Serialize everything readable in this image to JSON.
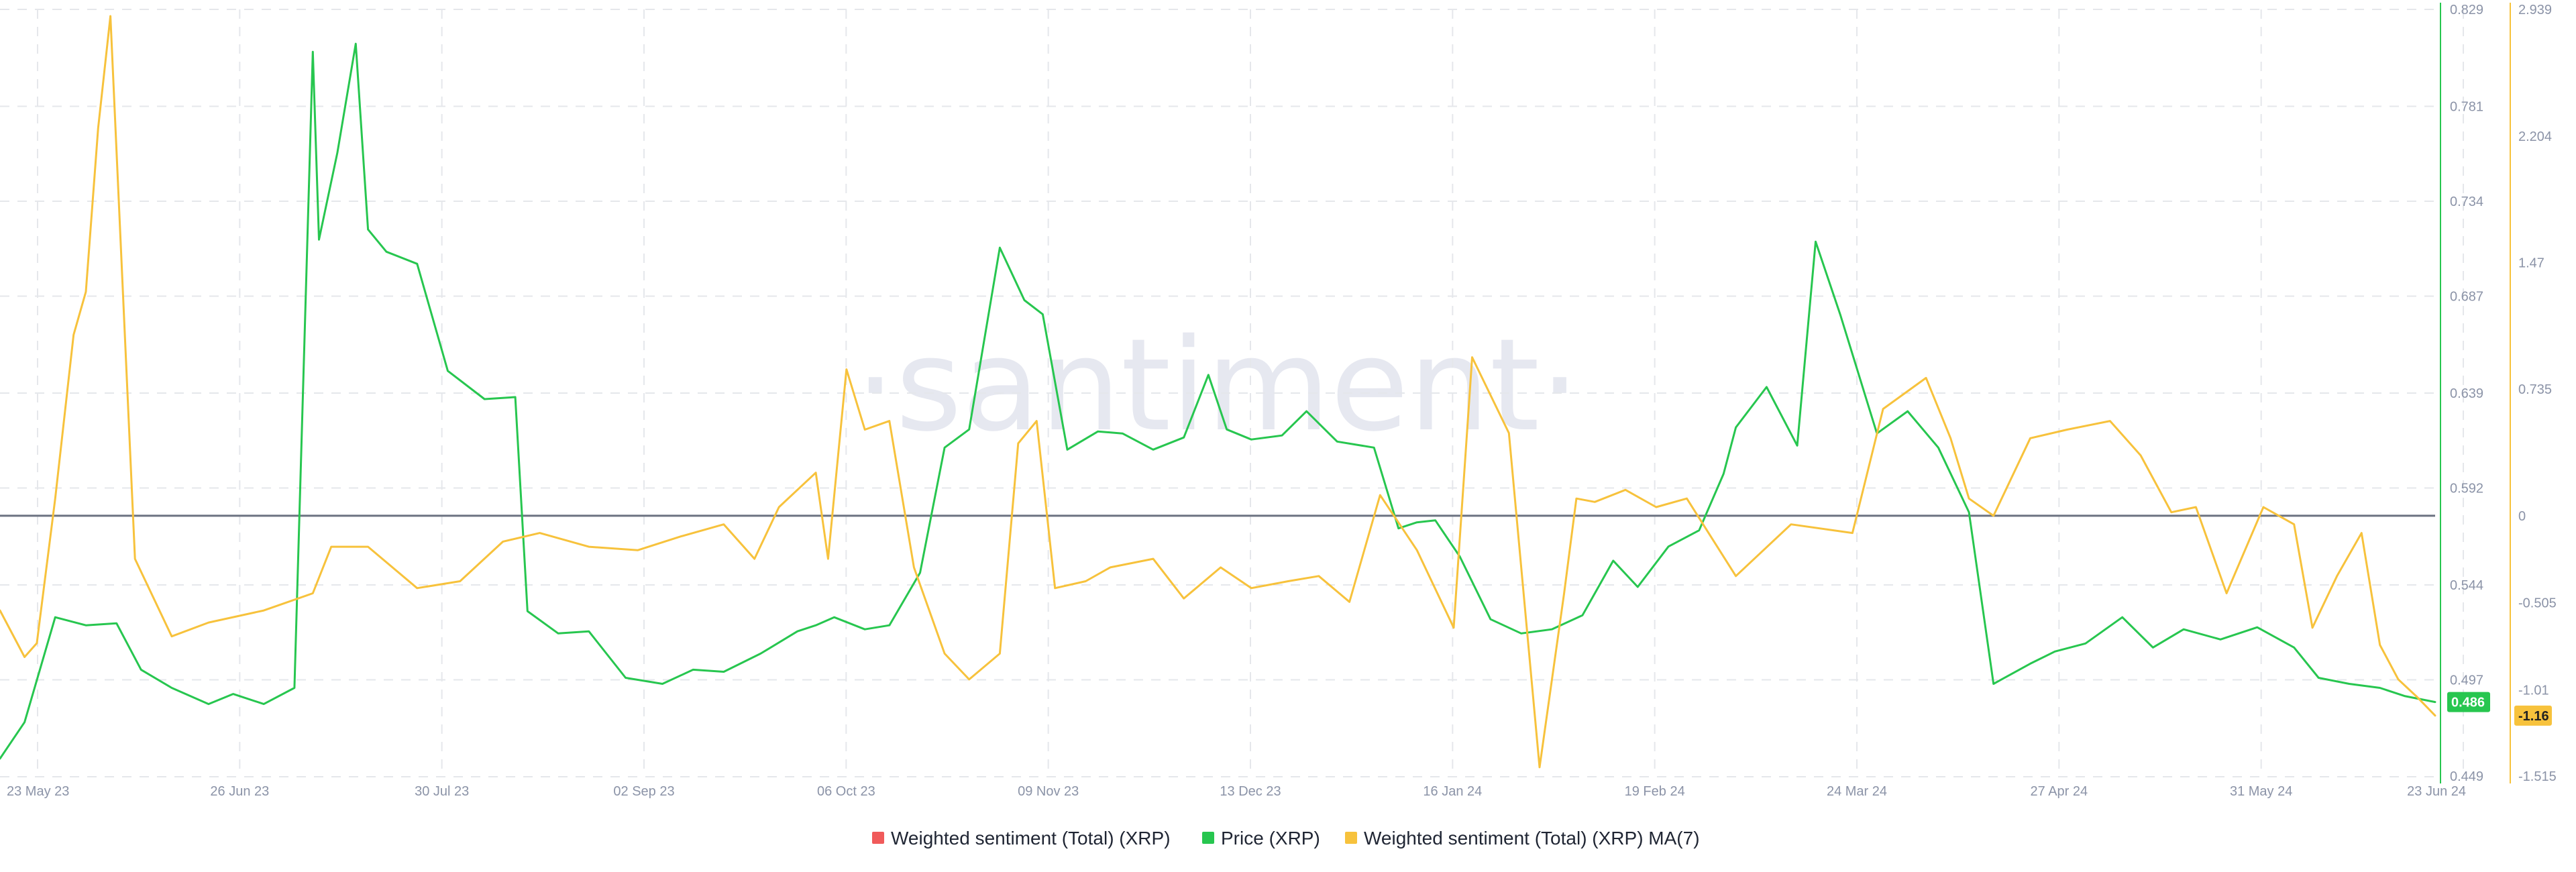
{
  "watermark": "·santiment·",
  "colors": {
    "price": "#27c64f",
    "ma7": "#f7c23c",
    "sentiment": "#f05a5a",
    "baseline": "#6b7280",
    "grid": "#e5e7eb"
  },
  "chart_data": {
    "type": "line",
    "x_ticks": [
      "23 May 23",
      "26 Jun 23",
      "30 Jul 23",
      "02 Sep 23",
      "06 Oct 23",
      "09 Nov 23",
      "13 Dec 23",
      "16 Jan 24",
      "19 Feb 24",
      "24 Mar 24",
      "27 Apr 24",
      "31 May 24",
      "23 Jun 24"
    ],
    "x_range": [
      "2023-05-23",
      "2024-06-23"
    ],
    "y_right_price": {
      "label": "Price (XRP)",
      "ticks": [
        "0.829",
        "0.781",
        "0.734",
        "0.687",
        "0.639",
        "0.592",
        "0.544",
        "0.497",
        "0.449"
      ],
      "range": [
        0.449,
        0.829
      ]
    },
    "y_right_sentiment": {
      "label": "Weighted sentiment (Total) (XRP)",
      "ticks": [
        "2.939",
        "2.204",
        "1.47",
        "0.735",
        "0",
        "-0.505",
        "-1.01",
        "-1.515"
      ],
      "range": [
        -1.515,
        2.939
      ]
    },
    "current_price_label": "0.486",
    "current_sentiment_label": "-1.16",
    "legend": [
      "Weighted sentiment (Total) (XRP)",
      "Price (XRP)",
      "Weighted sentiment (Total) (XRP) MA(7)"
    ],
    "legend_position": "bottom-center",
    "grid": true,
    "series": [
      {
        "name": "Price (XRP)",
        "axis": "price",
        "x": [
          "2023-05-23",
          "2023-05-27",
          "2023-06-01",
          "2023-06-06",
          "2023-06-11",
          "2023-06-15",
          "2023-06-20",
          "2023-06-26",
          "2023-06-30",
          "2023-07-05",
          "2023-07-10",
          "2023-07-13",
          "2023-07-14",
          "2023-07-17",
          "2023-07-20",
          "2023-07-22",
          "2023-07-25",
          "2023-07-30",
          "2023-08-04",
          "2023-08-10",
          "2023-08-15",
          "2023-08-17",
          "2023-08-22",
          "2023-08-27",
          "2023-09-02",
          "2023-09-08",
          "2023-09-13",
          "2023-09-18",
          "2023-09-24",
          "2023-09-30",
          "2023-10-03",
          "2023-10-06",
          "2023-10-11",
          "2023-10-15",
          "2023-10-20",
          "2023-10-24",
          "2023-10-28",
          "2023-11-02",
          "2023-11-06",
          "2023-11-09",
          "2023-11-13",
          "2023-11-18",
          "2023-11-22",
          "2023-11-27",
          "2023-12-02",
          "2023-12-06",
          "2023-12-09",
          "2023-12-13",
          "2023-12-18",
          "2023-12-22",
          "2023-12-27",
          "2024-01-02",
          "2024-01-06",
          "2024-01-09",
          "2024-01-12",
          "2024-01-16",
          "2024-01-21",
          "2024-01-26",
          "2024-01-31",
          "2024-02-05",
          "2024-02-10",
          "2024-02-14",
          "2024-02-19",
          "2024-02-24",
          "2024-02-28",
          "2024-03-01",
          "2024-03-06",
          "2024-03-11",
          "2024-03-14",
          "2024-03-18",
          "2024-03-24",
          "2024-03-29",
          "2024-04-03",
          "2024-04-08",
          "2024-04-12",
          "2024-04-18",
          "2024-04-22",
          "2024-04-27",
          "2024-05-03",
          "2024-05-08",
          "2024-05-13",
          "2024-05-19",
          "2024-05-25",
          "2024-05-31",
          "2024-06-04",
          "2024-06-09",
          "2024-06-14",
          "2024-06-18",
          "2024-06-23"
        ],
        "y": [
          0.458,
          0.476,
          0.528,
          0.524,
          0.525,
          0.502,
          0.493,
          0.485,
          0.49,
          0.485,
          0.493,
          0.808,
          0.715,
          0.758,
          0.812,
          0.72,
          0.709,
          0.703,
          0.65,
          0.636,
          0.637,
          0.531,
          0.52,
          0.521,
          0.498,
          0.495,
          0.502,
          0.501,
          0.51,
          0.521,
          0.524,
          0.528,
          0.522,
          0.524,
          0.55,
          0.612,
          0.621,
          0.711,
          0.685,
          0.678,
          0.611,
          0.62,
          0.619,
          0.611,
          0.617,
          0.648,
          0.621,
          0.616,
          0.618,
          0.63,
          0.615,
          0.612,
          0.572,
          0.575,
          0.576,
          0.558,
          0.527,
          0.52,
          0.522,
          0.529,
          0.556,
          0.543,
          0.563,
          0.571,
          0.599,
          0.622,
          0.642,
          0.613,
          0.714,
          0.678,
          0.619,
          0.63,
          0.612,
          0.58,
          0.495,
          0.505,
          0.511,
          0.515,
          0.528,
          0.513,
          0.522,
          0.517,
          0.523,
          0.513,
          0.498,
          0.495,
          0.493,
          0.489,
          0.486
        ]
      },
      {
        "name": "Weighted sentiment (Total) (XRP) MA(7)",
        "axis": "sentiment",
        "x": [
          "2023-05-23",
          "2023-05-27",
          "2023-05-29",
          "2023-06-01",
          "2023-06-04",
          "2023-06-06",
          "2023-06-08",
          "2023-06-10",
          "2023-06-14",
          "2023-06-20",
          "2023-06-26",
          "2023-07-05",
          "2023-07-13",
          "2023-07-16",
          "2023-07-22",
          "2023-07-30",
          "2023-08-06",
          "2023-08-13",
          "2023-08-19",
          "2023-08-27",
          "2023-09-04",
          "2023-09-11",
          "2023-09-18",
          "2023-09-23",
          "2023-09-27",
          "2023-10-03",
          "2023-10-05",
          "2023-10-08",
          "2023-10-11",
          "2023-10-15",
          "2023-10-19",
          "2023-10-24",
          "2023-10-28",
          "2023-11-02",
          "2023-11-05",
          "2023-11-08",
          "2023-11-11",
          "2023-11-16",
          "2023-11-20",
          "2023-11-27",
          "2023-12-02",
          "2023-12-08",
          "2023-12-13",
          "2023-12-19",
          "2023-12-24",
          "2023-12-29",
          "2024-01-03",
          "2024-01-09",
          "2024-01-15",
          "2024-01-18",
          "2024-01-24",
          "2024-01-29",
          "2024-02-02",
          "2024-02-04",
          "2024-02-07",
          "2024-02-12",
          "2024-02-17",
          "2024-02-22",
          "2024-03-01",
          "2024-03-10",
          "2024-03-20",
          "2024-03-25",
          "2024-04-01",
          "2024-04-05",
          "2024-04-08",
          "2024-04-12",
          "2024-04-18",
          "2024-04-24",
          "2024-05-01",
          "2024-05-06",
          "2024-05-11",
          "2024-05-15",
          "2024-05-20",
          "2024-05-26",
          "2024-05-31",
          "2024-06-03",
          "2024-06-07",
          "2024-06-11",
          "2024-06-14",
          "2024-06-17",
          "2024-06-20",
          "2024-06-23"
        ],
        "y": [
          -0.55,
          -0.82,
          -0.74,
          0.1,
          1.05,
          1.3,
          2.25,
          2.9,
          -0.25,
          -0.7,
          -0.62,
          -0.55,
          -0.45,
          -0.18,
          -0.18,
          -0.42,
          -0.38,
          -0.15,
          -0.1,
          -0.18,
          -0.2,
          -0.12,
          -0.05,
          -0.25,
          0.05,
          0.25,
          -0.25,
          0.85,
          0.5,
          0.55,
          -0.3,
          -0.8,
          -0.95,
          -0.8,
          0.42,
          0.55,
          -0.42,
          -0.38,
          -0.3,
          -0.25,
          -0.48,
          -0.3,
          -0.42,
          -0.38,
          -0.35,
          -0.5,
          0.12,
          -0.2,
          -0.65,
          0.92,
          0.48,
          -1.46,
          -0.45,
          0.1,
          0.08,
          0.15,
          0.05,
          0.1,
          -0.35,
          -0.05,
          -0.1,
          0.62,
          0.8,
          0.45,
          0.1,
          0.0,
          0.45,
          0.5,
          0.55,
          0.35,
          0.02,
          0.05,
          -0.45,
          0.05,
          -0.05,
          -0.65,
          -0.35,
          -0.1,
          -0.75,
          -0.95,
          -1.05,
          -1.16
        ]
      }
    ]
  }
}
